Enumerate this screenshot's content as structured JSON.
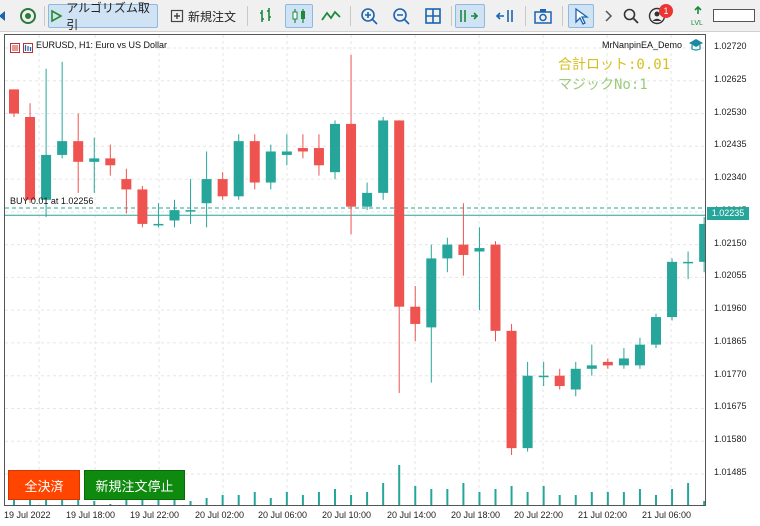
{
  "toolbar": {
    "algo_trading_label": "アルゴリズム取引",
    "new_order_label": "新規注文",
    "notification_count": "1",
    "level_label": "LVL"
  },
  "chart": {
    "title": "EURUSD, H1:  Euro vs US Dollar",
    "ea_name": "MrNanpinEA_Demo",
    "lot_text": "合計ロット:0.01",
    "magic_text": "マジックNo:1",
    "order_line_label": "BUY 0.01 at 1.02256",
    "current_price": "1.02235",
    "bull_color": "#26a69a",
    "bear_color": "#ef5350",
    "buttons": {
      "close_all": "全決済",
      "stop_new": "新規注文停止"
    }
  },
  "chart_data": {
    "type": "candlestick",
    "symbol": "EURUSD",
    "timeframe": "H1",
    "y_ticks": [
      "1.02720",
      "1.02625",
      "1.02530",
      "1.02435",
      "1.02340",
      "1.02245",
      "1.02150",
      "1.02055",
      "1.01960",
      "1.01865",
      "1.01770",
      "1.01675",
      "1.01580",
      "1.01485"
    ],
    "x_ticks": [
      "19 Jul 2022",
      "19 Jul 18:00",
      "19 Jul 22:00",
      "20 Jul 02:00",
      "20 Jul 06:00",
      "20 Jul 10:00",
      "20 Jul 14:00",
      "20 Jul 18:00",
      "20 Jul 22:00",
      "21 Jul 02:00",
      "21 Jul 06:00"
    ],
    "ylim": [
      1.0144,
      1.0275
    ],
    "order_price": 1.02256,
    "current_price": 1.02235,
    "candles": [
      {
        "o": 1.026,
        "h": 1.026,
        "l": 1.0252,
        "c": 1.0253
      },
      {
        "o": 1.0252,
        "h": 1.0256,
        "l": 1.0227,
        "c": 1.0228
      },
      {
        "o": 1.0228,
        "h": 1.0266,
        "l": 1.0223,
        "c": 1.0241
      },
      {
        "o": 1.0241,
        "h": 1.0268,
        "l": 1.024,
        "c": 1.0245
      },
      {
        "o": 1.0245,
        "h": 1.0253,
        "l": 1.023,
        "c": 1.0239
      },
      {
        "o": 1.0239,
        "h": 1.0246,
        "l": 1.023,
        "c": 1.024
      },
      {
        "o": 1.024,
        "h": 1.0244,
        "l": 1.0235,
        "c": 1.0238
      },
      {
        "o": 1.0234,
        "h": 1.0237,
        "l": 1.0224,
        "c": 1.0231
      },
      {
        "o": 1.0231,
        "h": 1.0232,
        "l": 1.022,
        "c": 1.0221
      },
      {
        "o": 1.0221,
        "h": 1.0227,
        "l": 1.022,
        "c": 1.0221
      },
      {
        "o": 1.0222,
        "h": 1.0228,
        "l": 1.022,
        "c": 1.0225
      },
      {
        "o": 1.0225,
        "h": 1.0234,
        "l": 1.0221,
        "c": 1.0225
      },
      {
        "o": 1.0227,
        "h": 1.0242,
        "l": 1.022,
        "c": 1.0234
      },
      {
        "o": 1.0234,
        "h": 1.0236,
        "l": 1.0228,
        "c": 1.0229
      },
      {
        "o": 1.0229,
        "h": 1.0247,
        "l": 1.0228,
        "c": 1.0245
      },
      {
        "o": 1.0245,
        "h": 1.0247,
        "l": 1.0231,
        "c": 1.0233
      },
      {
        "o": 1.0233,
        "h": 1.0244,
        "l": 1.0231,
        "c": 1.0242
      },
      {
        "o": 1.0241,
        "h": 1.0247,
        "l": 1.0238,
        "c": 1.0242
      },
      {
        "o": 1.0243,
        "h": 1.0247,
        "l": 1.024,
        "c": 1.0242
      },
      {
        "o": 1.0243,
        "h": 1.0247,
        "l": 1.0235,
        "c": 1.0238
      },
      {
        "o": 1.0236,
        "h": 1.0251,
        "l": 1.0234,
        "c": 1.025
      },
      {
        "o": 1.025,
        "h": 1.027,
        "l": 1.0218,
        "c": 1.0226
      },
      {
        "o": 1.0226,
        "h": 1.0233,
        "l": 1.0225,
        "c": 1.023
      },
      {
        "o": 1.023,
        "h": 1.0252,
        "l": 1.0228,
        "c": 1.0251
      },
      {
        "o": 1.0251,
        "h": 1.0251,
        "l": 1.0172,
        "c": 1.0197
      },
      {
        "o": 1.0197,
        "h": 1.0203,
        "l": 1.0187,
        "c": 1.0192
      },
      {
        "o": 1.0191,
        "h": 1.0215,
        "l": 1.0175,
        "c": 1.0211
      },
      {
        "o": 1.0211,
        "h": 1.0217,
        "l": 1.0207,
        "c": 1.0215
      },
      {
        "o": 1.0215,
        "h": 1.0227,
        "l": 1.0206,
        "c": 1.0212
      },
      {
        "o": 1.0213,
        "h": 1.022,
        "l": 1.0196,
        "c": 1.0214
      },
      {
        "o": 1.0215,
        "h": 1.0216,
        "l": 1.0187,
        "c": 1.019
      },
      {
        "o": 1.019,
        "h": 1.0192,
        "l": 1.0154,
        "c": 1.0156
      },
      {
        "o": 1.0156,
        "h": 1.0181,
        "l": 1.0155,
        "c": 1.0177
      },
      {
        "o": 1.0177,
        "h": 1.0181,
        "l": 1.0174,
        "c": 1.0177
      },
      {
        "o": 1.0177,
        "h": 1.0179,
        "l": 1.0173,
        "c": 1.0174
      },
      {
        "o": 1.0173,
        "h": 1.0181,
        "l": 1.0171,
        "c": 1.0179
      },
      {
        "o": 1.0179,
        "h": 1.0186,
        "l": 1.0177,
        "c": 1.018
      },
      {
        "o": 1.0181,
        "h": 1.0182,
        "l": 1.0179,
        "c": 1.018
      },
      {
        "o": 1.018,
        "h": 1.0185,
        "l": 1.0179,
        "c": 1.0182
      },
      {
        "o": 1.018,
        "h": 1.0188,
        "l": 1.0179,
        "c": 1.0186
      },
      {
        "o": 1.0186,
        "h": 1.0195,
        "l": 1.0185,
        "c": 1.0194
      },
      {
        "o": 1.0194,
        "h": 1.0211,
        "l": 1.0193,
        "c": 1.021
      },
      {
        "o": 1.021,
        "h": 1.0213,
        "l": 1.0205,
        "c": 1.021
      },
      {
        "o": 1.021,
        "h": 1.0223,
        "l": 1.0207,
        "c": 1.0221
      },
      {
        "o": 1.0222,
        "h": 1.0227,
        "l": 1.0221,
        "c": 1.0224
      }
    ],
    "volumes": [
      4,
      5,
      3,
      4,
      4,
      2,
      1,
      4,
      3,
      3,
      4,
      2,
      3,
      4,
      4,
      5,
      3,
      5,
      4,
      5,
      6,
      4,
      5,
      8,
      14,
      7,
      6,
      6,
      8,
      5,
      6,
      7,
      5,
      7,
      4,
      4,
      5,
      5,
      5,
      6,
      4,
      6,
      8,
      2,
      1
    ]
  }
}
